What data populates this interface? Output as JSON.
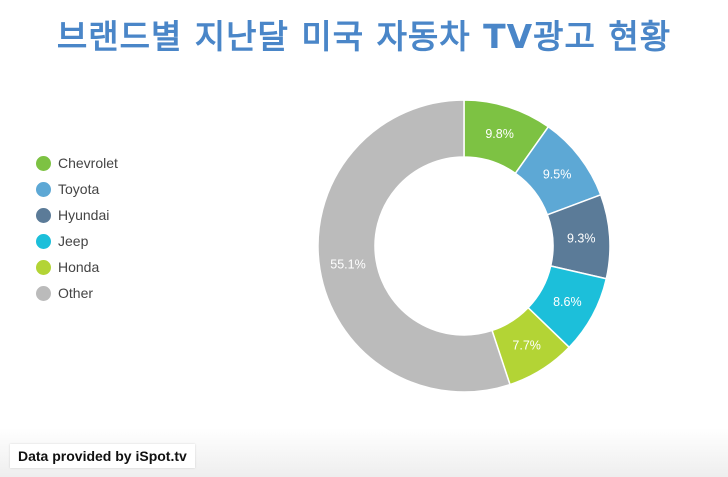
{
  "title": "브랜드별 지난달 미국 자동차 TV광고 현황",
  "source": "Data provided by iSpot.tv",
  "chart_data": {
    "type": "pie",
    "donut": true,
    "legend_position": "left",
    "categories": [
      "Chevrolet",
      "Toyota",
      "Hyundai",
      "Jeep",
      "Honda",
      "Other"
    ],
    "values": [
      9.8,
      9.5,
      9.3,
      8.6,
      7.7,
      55.1
    ],
    "labels": [
      "9.8%",
      "9.5%",
      "9.3%",
      "8.6%",
      "7.7%",
      "55.1%"
    ],
    "colors": [
      "#7dc243",
      "#5da8d5",
      "#5b7b98",
      "#1cbfda",
      "#b3d435",
      "#bbbbbb"
    ]
  }
}
